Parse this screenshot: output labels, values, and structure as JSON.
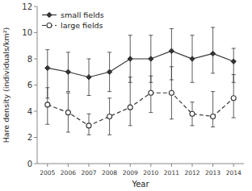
{
  "chart_data": {
    "type": "line",
    "x": [
      2005,
      2006,
      2007,
      2008,
      2009,
      2010,
      2011,
      2012,
      2013,
      2014
    ],
    "xlabel": "Year",
    "ylabel": "Hare density (individuals/km²)",
    "xlim": [
      2004.5,
      2014.5
    ],
    "xticks": [
      2005,
      2006,
      2007,
      2008,
      2009,
      2010,
      2011,
      2012,
      2013,
      2014
    ],
    "ylim": [
      0,
      12
    ],
    "yticks": [
      0,
      2,
      4,
      6,
      8,
      10,
      12
    ],
    "grid": false,
    "legend": "upper-left",
    "series": [
      {
        "name": "small fields",
        "color": "#333333",
        "marker": "diamond",
        "line_style": "solid",
        "values": [
          7.3,
          7.0,
          6.6,
          7.0,
          8.0,
          8.0,
          8.6,
          8.0,
          8.4,
          7.8
        ],
        "yerr_low": [
          2.3,
          1.5,
          1.4,
          1.5,
          1.8,
          1.8,
          2.2,
          1.8,
          1.5,
          1.6
        ],
        "yerr_high": [
          1.4,
          1.5,
          1.4,
          1.5,
          1.8,
          1.8,
          1.7,
          1.8,
          2.0,
          1.0
        ]
      },
      {
        "name": "large fields",
        "color": "#333333",
        "marker": "open-circle",
        "line_style": "dashed",
        "values": [
          4.5,
          3.9,
          2.9,
          3.6,
          4.3,
          5.4,
          5.4,
          3.8,
          3.6,
          5.0
        ],
        "yerr_low": [
          1.5,
          1.5,
          0.7,
          1.4,
          1.4,
          1.5,
          2.0,
          0.9,
          0.8,
          1.5
        ],
        "yerr_high": [
          1.3,
          1.5,
          0.9,
          1.4,
          2.3,
          1.3,
          2.0,
          0.9,
          1.9,
          1.8
        ]
      }
    ]
  }
}
